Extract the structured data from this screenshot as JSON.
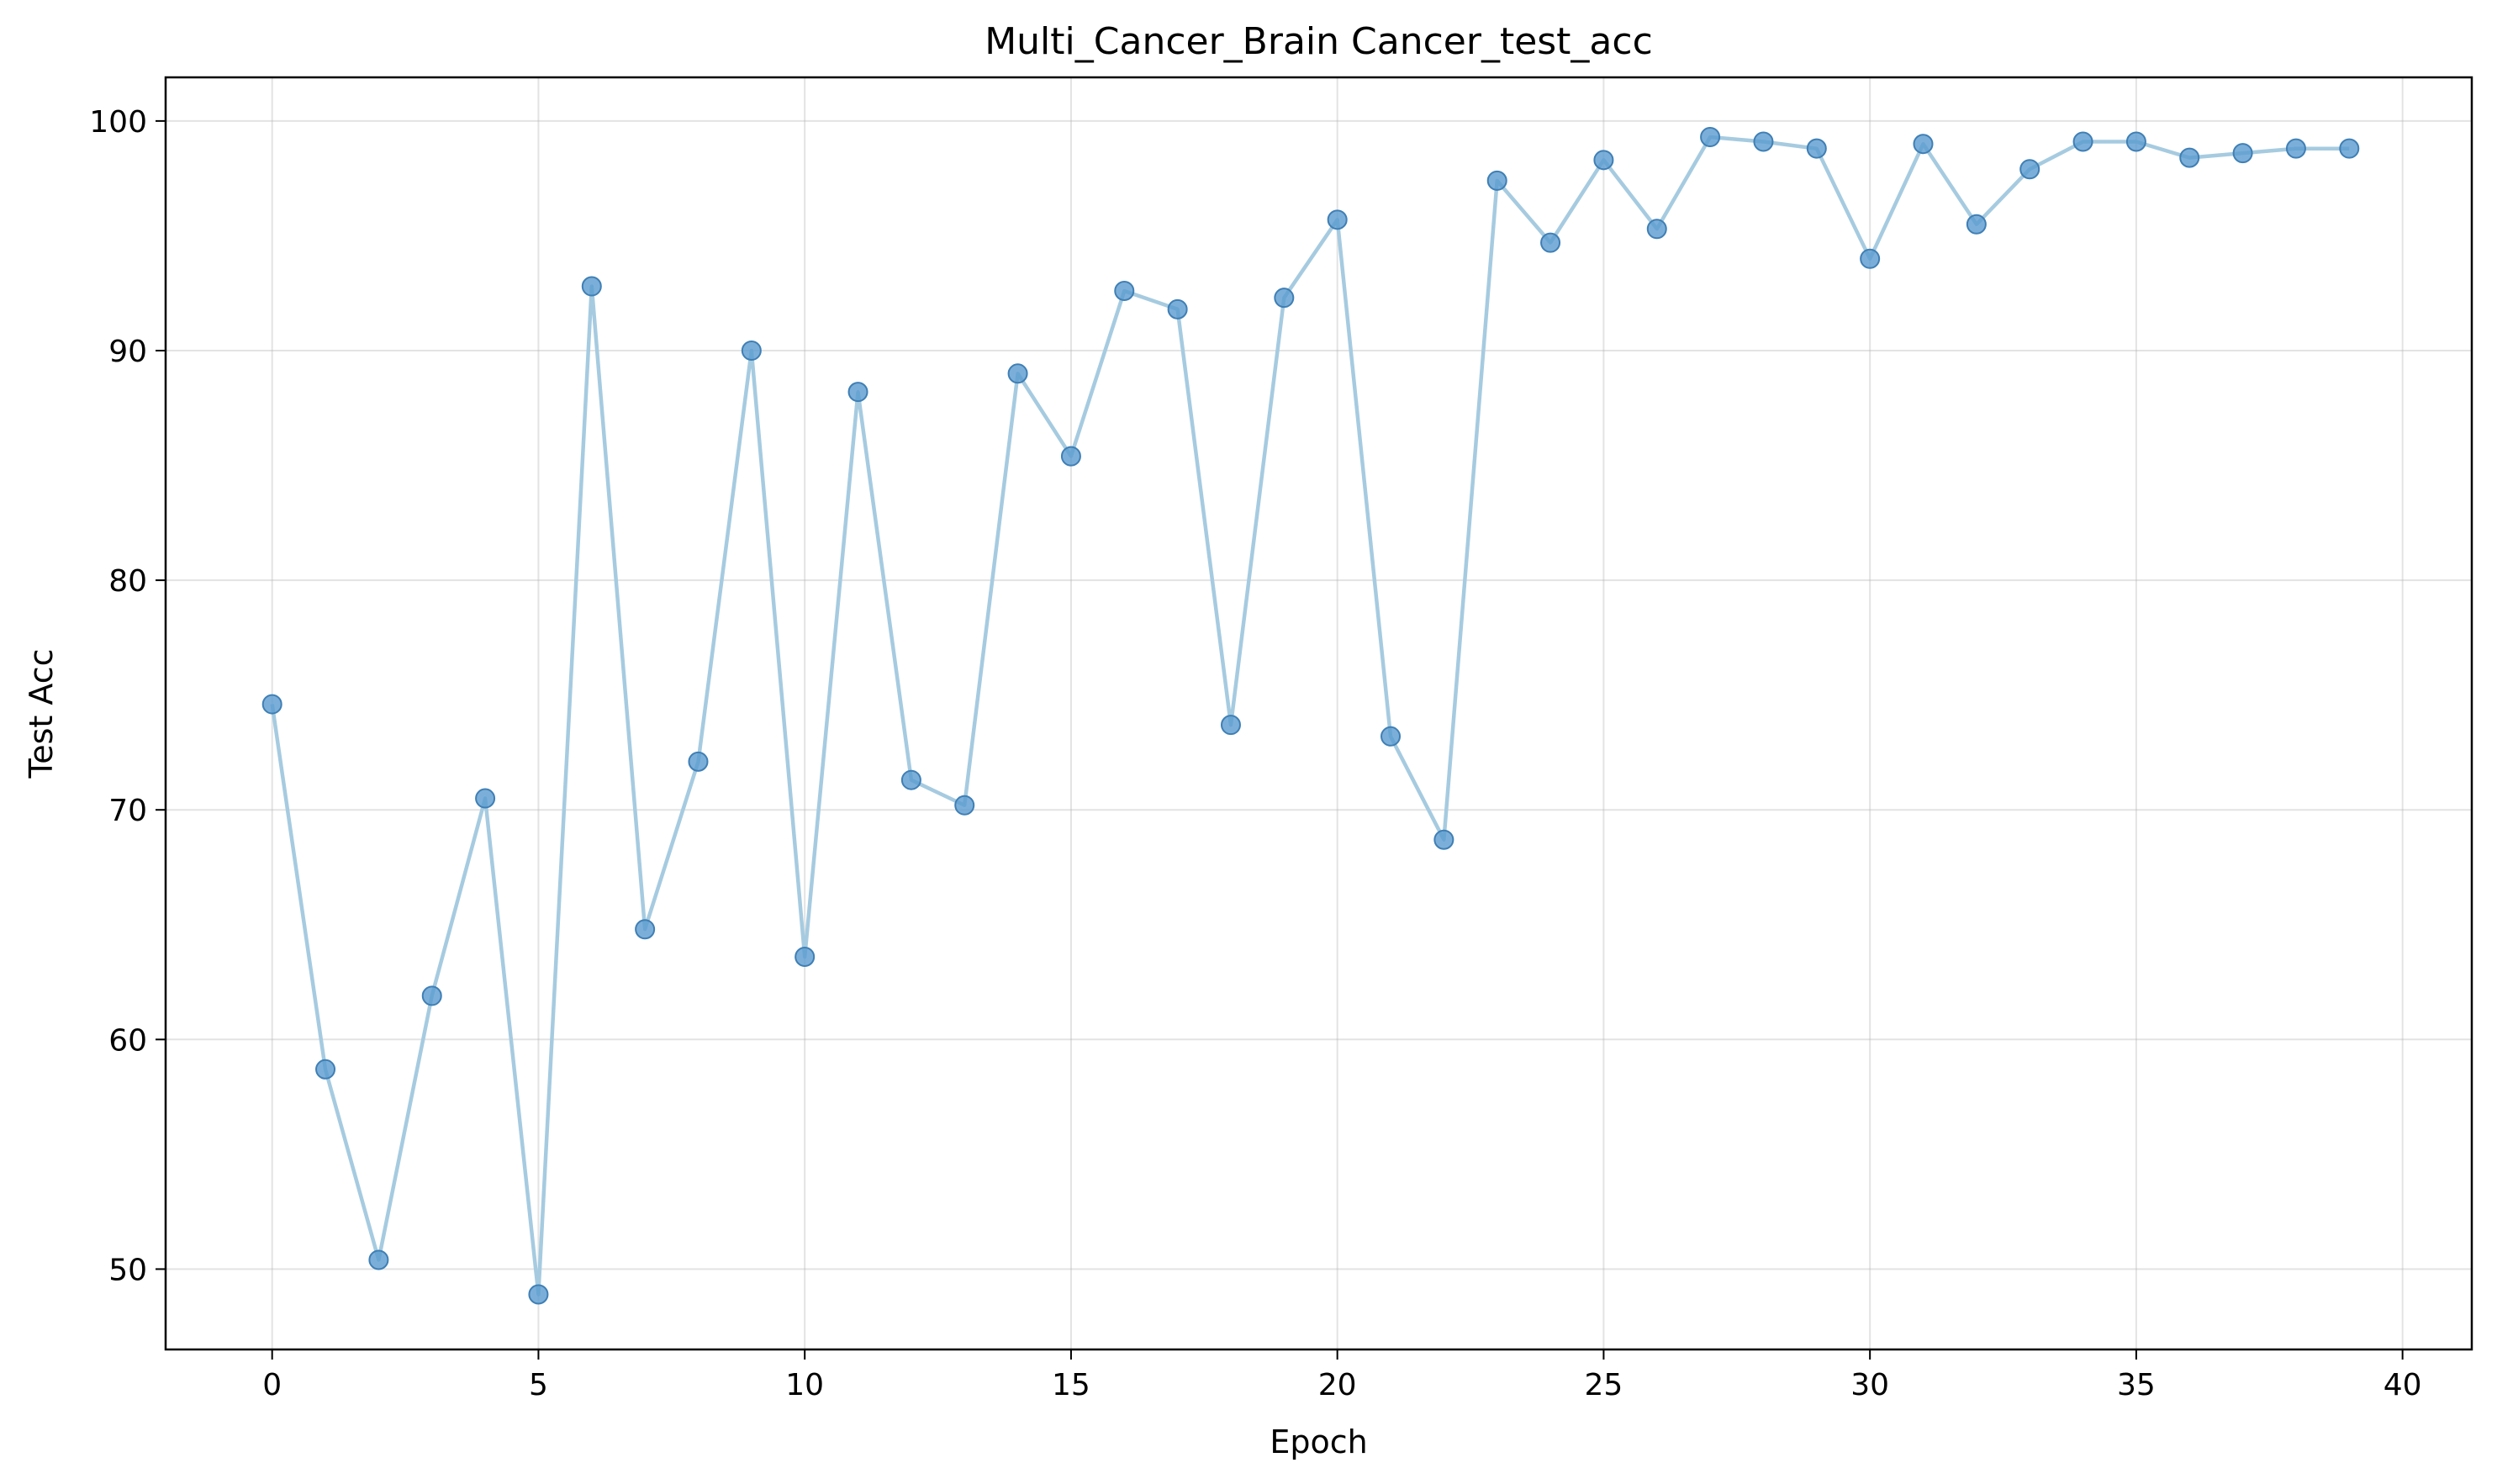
{
  "chart_data": {
    "type": "line",
    "title": "Multi_Cancer_Brain Cancer_test_acc",
    "xlabel": "Epoch",
    "ylabel": "Test Acc",
    "xlim": [
      -2,
      41.3
    ],
    "ylim": [
      46.5,
      101.9
    ],
    "xticks": [
      0,
      5,
      10,
      15,
      20,
      25,
      30,
      35,
      40
    ],
    "yticks": [
      50,
      60,
      70,
      80,
      90,
      100
    ],
    "grid": true,
    "markers": true,
    "line_color": "#a6cbe0",
    "marker_color": "#5a9bd0",
    "marker_edge_color": "#3f7fb5",
    "series": [
      {
        "x": [
          0,
          1,
          2,
          3,
          4,
          5,
          6,
          7,
          8,
          9,
          10,
          11,
          12,
          13,
          14,
          15,
          16,
          17,
          18,
          19,
          20,
          21,
          22,
          23,
          24,
          25,
          26,
          27,
          28,
          29,
          30,
          31,
          32,
          33,
          34,
          35,
          36,
          37,
          38,
          39
        ],
        "values": [
          74.6,
          58.7,
          50.4,
          61.9,
          70.5,
          48.9,
          92.8,
          64.8,
          72.1,
          90.0,
          63.6,
          88.2,
          71.3,
          70.2,
          89.0,
          85.4,
          92.6,
          91.8,
          73.7,
          92.3,
          95.7,
          73.2,
          68.7,
          97.4,
          94.7,
          98.3,
          95.3,
          99.3,
          99.1,
          98.8,
          94.0,
          99.0,
          95.5,
          97.9,
          99.1,
          99.1,
          98.4,
          98.6,
          98.8,
          98.8
        ]
      }
    ]
  }
}
